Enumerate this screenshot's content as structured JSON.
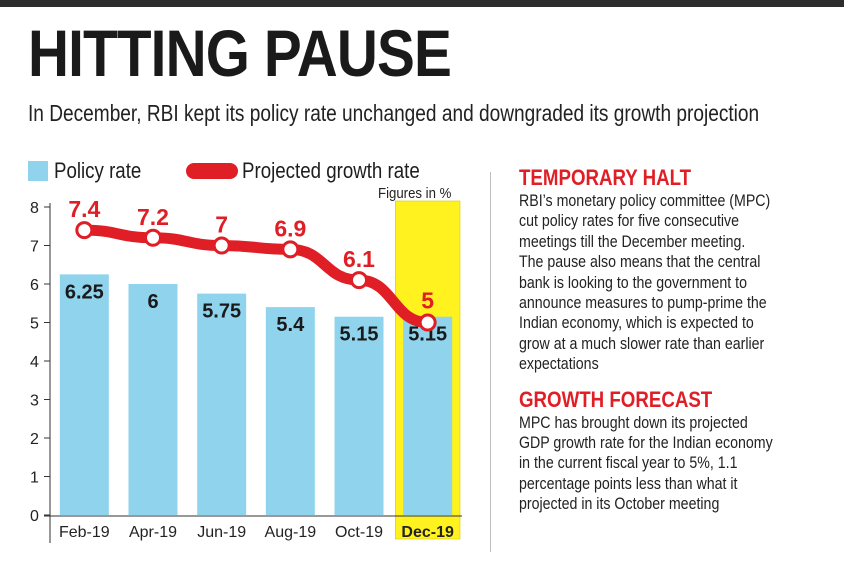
{
  "headline": "HITTING PAUSE",
  "subhead": "In December, RBI kept its policy rate unchanged and downgraded its growth projection",
  "note": "Figures in %",
  "colors": {
    "bar": "#8fd3ec",
    "line": "#e01e26",
    "highlight": "#fff21f",
    "heading": "#e01e26"
  },
  "chart_data": {
    "type": "bar",
    "categories": [
      "Feb-19",
      "Apr-19",
      "Jun-19",
      "Aug-19",
      "Oct-19",
      "Dec-19"
    ],
    "highlight_category": "Dec-19",
    "series": [
      {
        "name": "Policy rate",
        "type": "bar",
        "values": [
          6.25,
          6,
          5.75,
          5.4,
          5.15,
          5.15
        ],
        "labels": [
          "6.25",
          "6",
          "5.75",
          "5.4",
          "5.15",
          "5.15"
        ]
      },
      {
        "name": "Projected growth rate",
        "type": "line",
        "values": [
          7.4,
          7.2,
          7,
          6.9,
          6.1,
          5
        ],
        "labels": [
          "7.4",
          "7.2",
          "7",
          "6.9",
          "6.1",
          "5"
        ]
      }
    ],
    "yticks": [
      "0",
      "1",
      "2",
      "3",
      "4",
      "5",
      "6",
      "7",
      "8"
    ],
    "ylim": [
      0,
      8
    ],
    "legend_position": "top-left"
  },
  "sidebar": {
    "sections": [
      {
        "heading": "TEMPORARY HALT",
        "lines": [
          "RBI’s monetary policy committee (MPC)",
          "cut policy rates for five consecutive",
          "meetings till the December meeting.",
          "The pause also means that the central",
          "bank is looking to the government to",
          "announce measures to pump-prime the",
          "Indian economy, which is expected to",
          "grow at a much slower rate than earlier",
          "expectations"
        ]
      },
      {
        "heading": "GROWTH FORECAST",
        "lines": [
          "MPC has brought down its projected",
          "GDP growth rate for the Indian economy",
          "in the current fiscal year to 5%, 1.1",
          "percentage points less than what it",
          "projected in its October meeting"
        ]
      }
    ]
  }
}
